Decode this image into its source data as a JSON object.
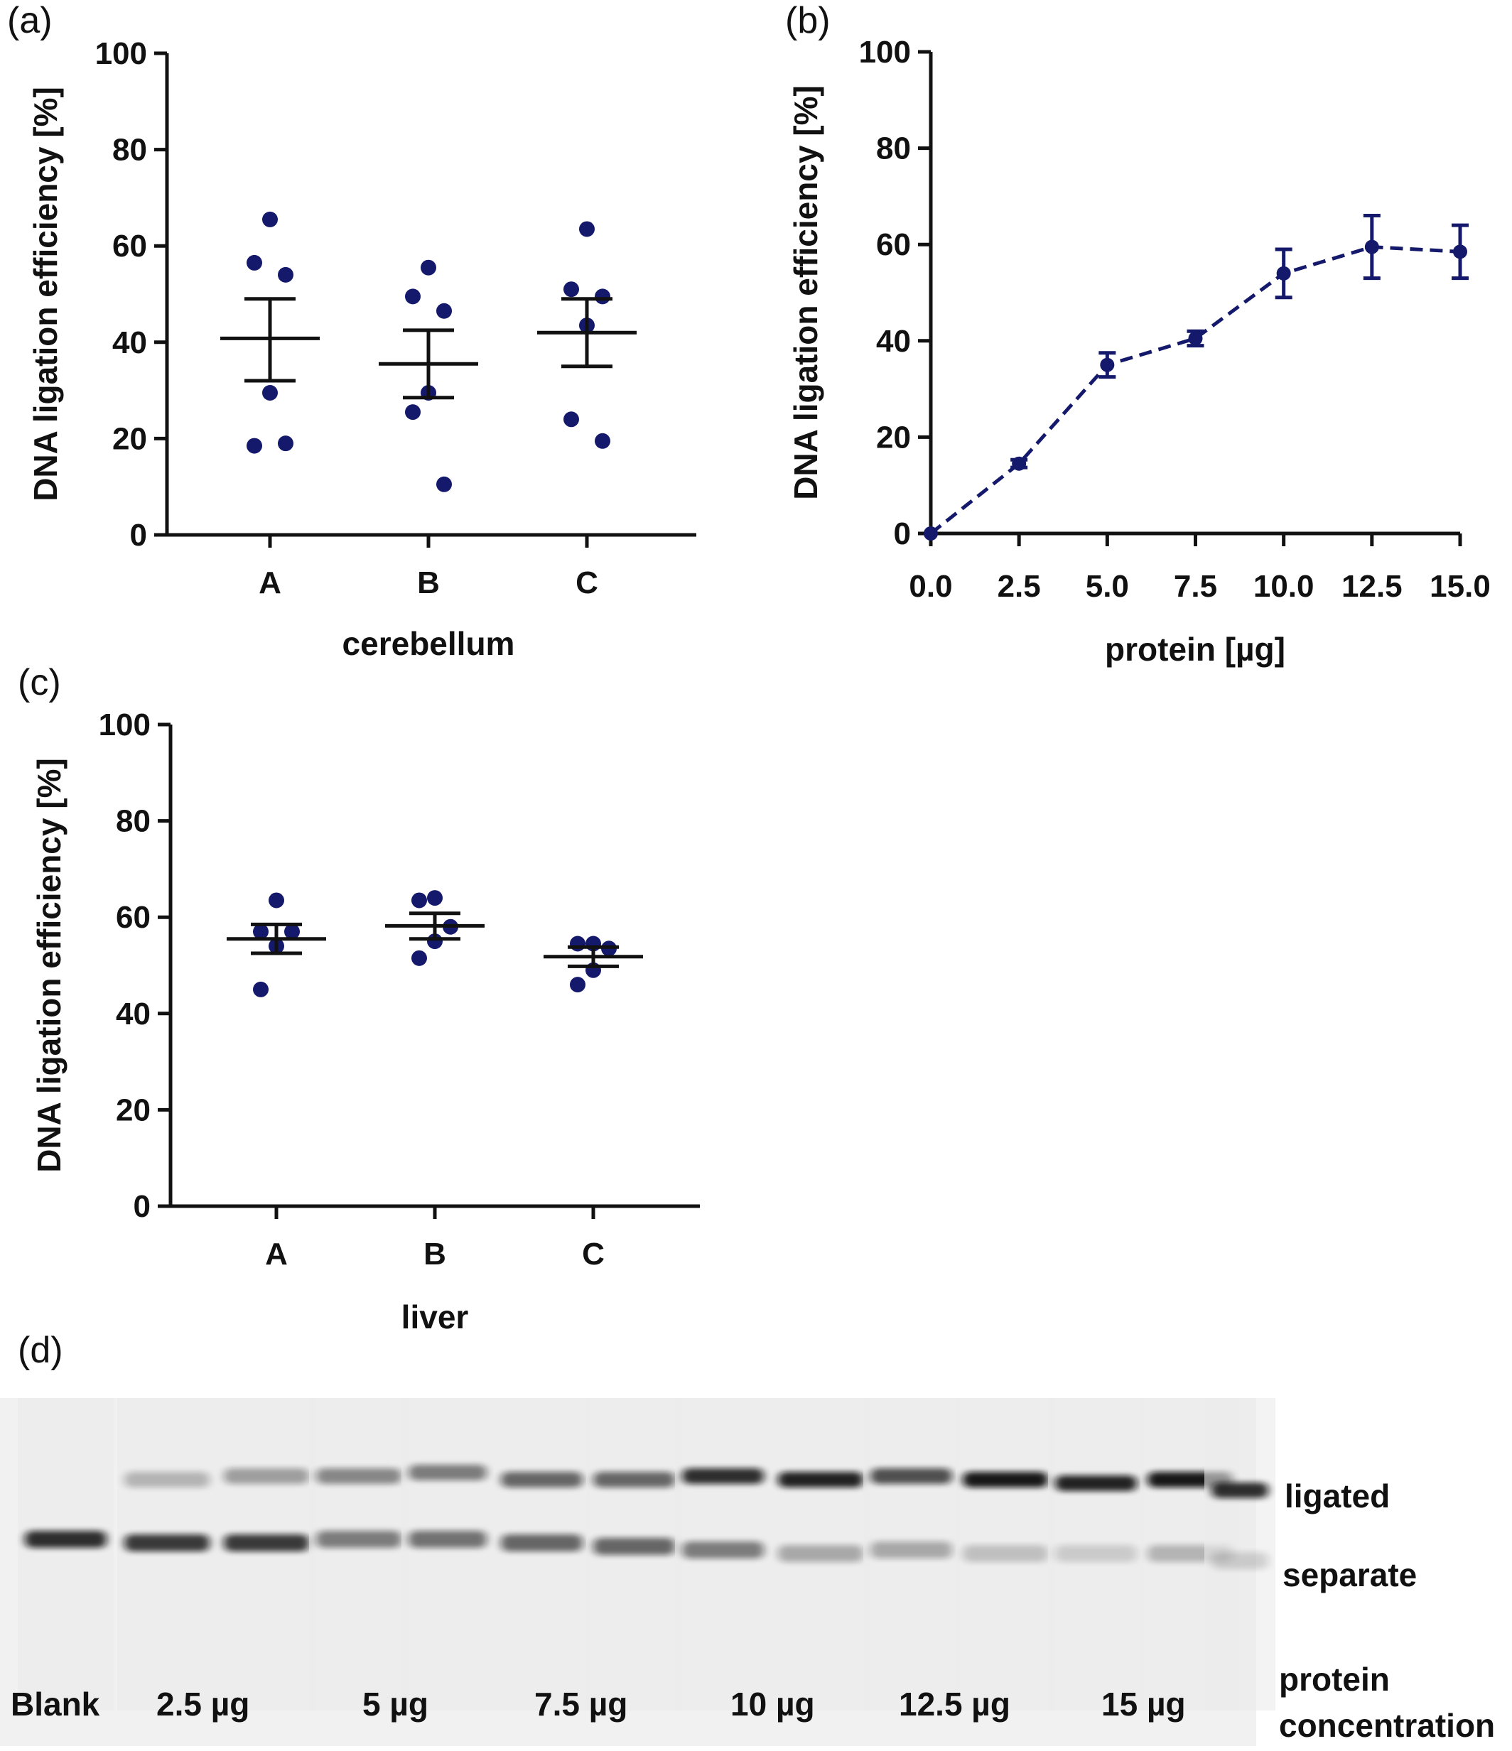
{
  "panels": {
    "a": "(a)",
    "b": "(b)",
    "c": "(c)",
    "d": "(d)"
  },
  "colors": {
    "point": "#14196b",
    "axis": "#111111"
  },
  "chart_data": [
    {
      "id": "a",
      "type": "scatter",
      "categories": [
        "A",
        "B",
        "C"
      ],
      "xlabel": "cerebellum",
      "ylabel": "DNA ligation efficiency [%]",
      "ylim": [
        0,
        100
      ],
      "yticks": [
        0,
        20,
        40,
        60,
        80,
        100
      ],
      "series": [
        {
          "category": "A",
          "points": [
            65.5,
            56.5,
            54,
            29.5,
            18.5,
            19
          ],
          "mean": 40.8,
          "sem_low": 32,
          "sem_high": 49
        },
        {
          "category": "B",
          "points": [
            55.5,
            49.5,
            46.5,
            29.5,
            25.5,
            10.5
          ],
          "mean": 35.5,
          "sem_low": 28.5,
          "sem_high": 42.5
        },
        {
          "category": "C",
          "points": [
            63.5,
            51,
            49.5,
            43.5,
            24,
            19.5
          ],
          "mean": 42,
          "sem_low": 35,
          "sem_high": 49
        }
      ]
    },
    {
      "id": "b",
      "type": "line",
      "x": [
        0.0,
        2.5,
        5.0,
        7.5,
        10.0,
        12.5,
        15.0
      ],
      "y": [
        0,
        14.5,
        35,
        40.5,
        54,
        59.5,
        58.5
      ],
      "err": [
        0,
        0.8,
        2.5,
        1.5,
        5,
        6.5,
        5.5
      ],
      "xticks": [
        "0.0",
        "2.5",
        "5.0",
        "7.5",
        "10.0",
        "12.5",
        "15.0"
      ],
      "xlim": [
        0,
        15
      ],
      "ylim": [
        0,
        100
      ],
      "yticks": [
        0,
        20,
        40,
        60,
        80,
        100
      ],
      "xlabel": "protein [µg]",
      "ylabel": "DNA ligation efficiency [%]",
      "line_style": "dashed"
    },
    {
      "id": "c",
      "type": "scatter",
      "categories": [
        "A",
        "B",
        "C"
      ],
      "xlabel": "liver",
      "ylabel": "DNA ligation efficiency [%]",
      "ylim": [
        0,
        100
      ],
      "yticks": [
        0,
        20,
        40,
        60,
        80,
        100
      ],
      "series": [
        {
          "category": "A",
          "points": [
            63.5,
            57,
            57,
            54,
            45
          ],
          "mean": 55.5,
          "sem_low": 52.5,
          "sem_high": 58.5
        },
        {
          "category": "B",
          "points": [
            64,
            63.5,
            58,
            55,
            51.5
          ],
          "mean": 58.2,
          "sem_low": 55.5,
          "sem_high": 60.8
        },
        {
          "category": "C",
          "points": [
            54.5,
            54.5,
            53.5,
            49,
            46
          ],
          "mean": 51.8,
          "sem_low": 49.8,
          "sem_high": 53.8
        }
      ]
    }
  ],
  "gel": {
    "lane_labels": [
      "Blank",
      "2.5 µg",
      "5 µg",
      "7.5 µg",
      "10 µg",
      "12.5 µg",
      "15 µg"
    ],
    "band_labels": [
      "ligated",
      "separate"
    ],
    "concentration_label_1": "protein",
    "concentration_label_2": "concentration",
    "lanes": [
      {
        "ligated": 0,
        "separate": 0.85
      },
      {
        "ligated": 0.25,
        "separate": 0.8
      },
      {
        "ligated": 0.35,
        "separate": 0.8
      },
      {
        "ligated": 0.45,
        "separate": 0.5
      },
      {
        "ligated": 0.5,
        "separate": 0.55
      },
      {
        "ligated": 0.6,
        "separate": 0.6
      },
      {
        "ligated": 0.6,
        "separate": 0.6
      },
      {
        "ligated": 0.85,
        "separate": 0.5
      },
      {
        "ligated": 0.9,
        "separate": 0.3
      },
      {
        "ligated": 0.7,
        "separate": 0.3
      },
      {
        "ligated": 0.95,
        "separate": 0.2
      },
      {
        "ligated": 0.9,
        "separate": 0.15
      },
      {
        "ligated": 0.95,
        "separate": 0.25
      },
      {
        "ligated": 0.85,
        "separate": 0.15
      }
    ]
  }
}
